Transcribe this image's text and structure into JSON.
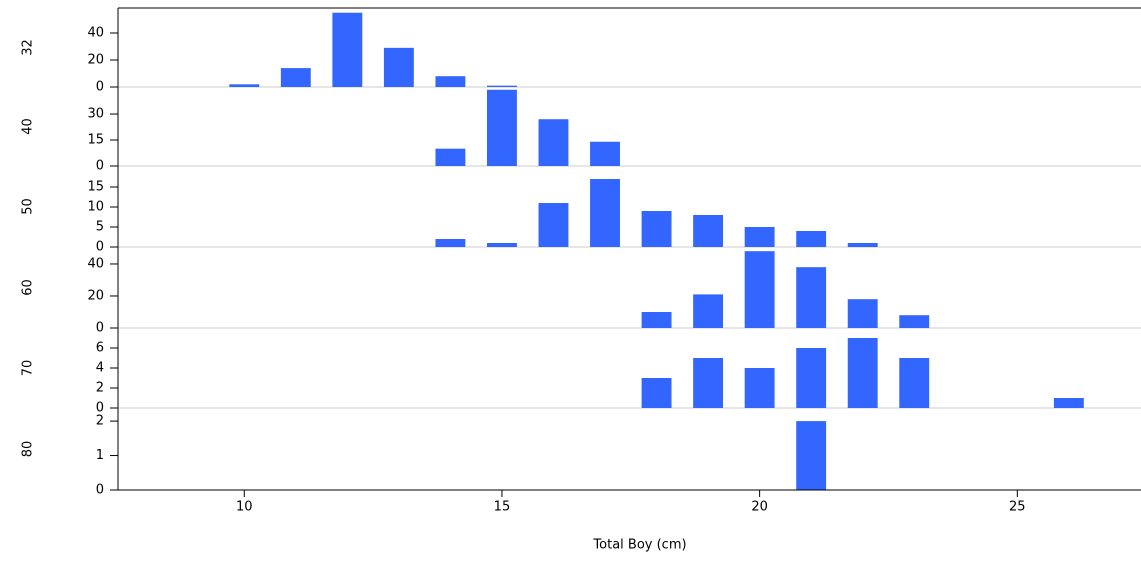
{
  "chart_data": [
    {
      "type": "bar",
      "label": "32",
      "x": [
        10,
        11,
        12,
        13,
        14,
        15
      ],
      "values": [
        2,
        14,
        55,
        29,
        8,
        1
      ],
      "color": "#3366ff",
      "xlim": [
        7.55,
        27.4
      ],
      "ylim": [
        0,
        58.5
      ],
      "yticks": [
        0,
        20,
        40
      ]
    },
    {
      "type": "bar",
      "label": "40",
      "x": [
        14,
        15,
        16,
        17
      ],
      "values": [
        10,
        44,
        27,
        14
      ],
      "color": "#3366ff",
      "xlim": [
        7.55,
        27.4
      ],
      "ylim": [
        0,
        45.6
      ],
      "yticks": [
        0,
        15,
        30
      ]
    },
    {
      "type": "bar",
      "label": "50",
      "x": [
        14,
        15,
        16,
        17,
        18,
        19,
        20,
        21,
        22
      ],
      "values": [
        2,
        1,
        11,
        17,
        9,
        8,
        5,
        4,
        1
      ],
      "color": "#3366ff",
      "xlim": [
        7.55,
        27.4
      ],
      "ylim": [
        0,
        20.25
      ],
      "yticks": [
        0,
        5,
        10,
        15
      ]
    },
    {
      "type": "bar",
      "label": "60",
      "x": [
        18,
        19,
        20,
        21,
        22,
        23
      ],
      "values": [
        10,
        21,
        48,
        38,
        18,
        8
      ],
      "color": "#3366ff",
      "xlim": [
        7.55,
        27.4
      ],
      "ylim": [
        0,
        50.6
      ],
      "yticks": [
        0,
        20,
        40
      ]
    },
    {
      "type": "bar",
      "label": "70",
      "x": [
        18,
        19,
        20,
        21,
        22,
        23,
        26
      ],
      "values": [
        3,
        5,
        4,
        6,
        7,
        5,
        1
      ],
      "color": "#3366ff",
      "xlim": [
        7.55,
        27.4
      ],
      "ylim": [
        0,
        8
      ],
      "yticks": [
        0,
        2,
        4,
        6
      ]
    },
    {
      "type": "bar",
      "label": "80",
      "x": [
        21
      ],
      "values": [
        2
      ],
      "color": "#3366ff",
      "xlim": [
        7.55,
        27.4
      ],
      "ylim": [
        0,
        2.38
      ],
      "yticks": [
        0,
        1,
        2
      ],
      "xticks": [
        10,
        15,
        20,
        25
      ],
      "xlabel": "Total Boy (cm)"
    }
  ]
}
